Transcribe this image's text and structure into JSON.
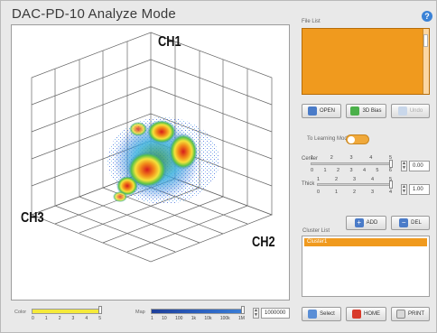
{
  "window": {
    "title": "DAC-PD-10 Analyze Mode",
    "help_icon": "?"
  },
  "plot": {
    "axis_labels": {
      "ch1": "CH1",
      "ch2": "CH2",
      "ch3": "CH3"
    }
  },
  "file_list": {
    "label": "File List"
  },
  "toolbar": {
    "open_label": "OPEN",
    "view3d_label": "3D Bias",
    "undo_label": "Undo"
  },
  "learning_mode": {
    "label": "To Learning Mode",
    "value": "on"
  },
  "center": {
    "label": "Center",
    "ticks": [
      "1",
      "2",
      "3",
      "4",
      "5"
    ],
    "ticks2": [
      "0",
      "1",
      "2",
      "3",
      "4",
      "5",
      "6"
    ],
    "value": "0.00"
  },
  "thick": {
    "label": "Thick",
    "ticks": [
      "1",
      "2",
      "3",
      "4",
      "5"
    ],
    "ticks2": [
      "0",
      "1",
      "2",
      "3",
      "4"
    ],
    "value": "1.00"
  },
  "cluster": {
    "add_label": "ADD",
    "del_label": "DEL",
    "list_label": "Cluster List",
    "items": [
      "Cluster1"
    ]
  },
  "bottom": {
    "color_label": "Color",
    "color_ticks": [
      "0",
      "1",
      "2",
      "3",
      "4",
      "5"
    ],
    "map_label": "Map",
    "map_ticks": [
      "1",
      "10",
      "100",
      "1k",
      "10k",
      "100k",
      "1M"
    ],
    "map_value": "1000000",
    "select_label": "Select",
    "home_label": "HOME",
    "print_label": "PRINT"
  },
  "colors": {
    "accent_orange": "#f09a1e",
    "color_bar_yellow": "#f5ea3a",
    "map_bar_blue": "#2a5fbf"
  }
}
